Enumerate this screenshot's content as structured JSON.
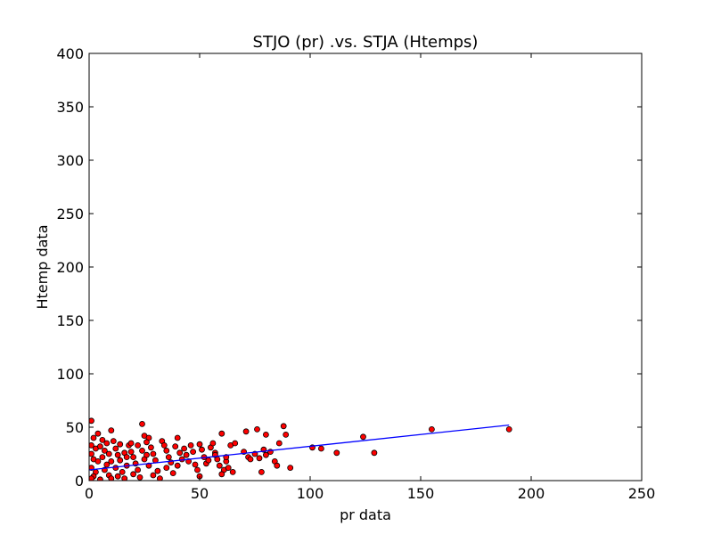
{
  "chart_data": {
    "type": "scatter",
    "title": "STJO (pr) .vs. STJA (Htemps)",
    "xlabel": "pr data",
    "ylabel": "Htemp data",
    "xlim": [
      0,
      250
    ],
    "ylim": [
      0,
      400
    ],
    "xticks": [
      "0",
      "50",
      "100",
      "150",
      "200",
      "250"
    ],
    "yticks": [
      "0",
      "50",
      "100",
      "150",
      "200",
      "250",
      "300",
      "350",
      "400"
    ],
    "grid": false,
    "legend": "none",
    "colors": {
      "points": "#ff0000",
      "point_edge": "#000000",
      "fit_line": "#0000ff",
      "axes": "#000000"
    },
    "fit_line": {
      "x": [
        0,
        190
      ],
      "y": [
        10,
        52
      ]
    },
    "points": [
      [
        1,
        56
      ],
      [
        2,
        40
      ],
      [
        1,
        33
      ],
      [
        3,
        30
      ],
      [
        1,
        25
      ],
      [
        2,
        20
      ],
      [
        4,
        18
      ],
      [
        1,
        12
      ],
      [
        3,
        8
      ],
      [
        2,
        4
      ],
      [
        1,
        2
      ],
      [
        5,
        1
      ],
      [
        4,
        44
      ],
      [
        6,
        38
      ],
      [
        5,
        32
      ],
      [
        7,
        28
      ],
      [
        6,
        22
      ],
      [
        8,
        15
      ],
      [
        7,
        10
      ],
      [
        9,
        5
      ],
      [
        10,
        2
      ],
      [
        8,
        35
      ],
      [
        9,
        25
      ],
      [
        10,
        18
      ],
      [
        10,
        47
      ],
      [
        11,
        37
      ],
      [
        12,
        30
      ],
      [
        13,
        24
      ],
      [
        14,
        19
      ],
      [
        12,
        12
      ],
      [
        15,
        8
      ],
      [
        13,
        4
      ],
      [
        16,
        2
      ],
      [
        14,
        34
      ],
      [
        16,
        26
      ],
      [
        17,
        14
      ],
      [
        18,
        33
      ],
      [
        19,
        27
      ],
      [
        20,
        22
      ],
      [
        21,
        16
      ],
      [
        22,
        10
      ],
      [
        20,
        6
      ],
      [
        23,
        3
      ],
      [
        24,
        28
      ],
      [
        25,
        20
      ],
      [
        19,
        35
      ],
      [
        22,
        33
      ],
      [
        17,
        22
      ],
      [
        24,
        53
      ],
      [
        25,
        42
      ],
      [
        27,
        40
      ],
      [
        26,
        36
      ],
      [
        28,
        31
      ],
      [
        29,
        25
      ],
      [
        30,
        19
      ],
      [
        27,
        14
      ],
      [
        31,
        9
      ],
      [
        29,
        5
      ],
      [
        32,
        2
      ],
      [
        26,
        24
      ],
      [
        33,
        37
      ],
      [
        34,
        33
      ],
      [
        35,
        28
      ],
      [
        36,
        22
      ],
      [
        37,
        17
      ],
      [
        35,
        12
      ],
      [
        38,
        7
      ],
      [
        40,
        40
      ],
      [
        39,
        32
      ],
      [
        41,
        26
      ],
      [
        42,
        20
      ],
      [
        40,
        14
      ],
      [
        43,
        30
      ],
      [
        44,
        24
      ],
      [
        45,
        18
      ],
      [
        46,
        33
      ],
      [
        47,
        27
      ],
      [
        48,
        15
      ],
      [
        49,
        10
      ],
      [
        50,
        34
      ],
      [
        51,
        29
      ],
      [
        52,
        22
      ],
      [
        53,
        16
      ],
      [
        50,
        4
      ],
      [
        55,
        31
      ],
      [
        56,
        35
      ],
      [
        57,
        26
      ],
      [
        58,
        20
      ],
      [
        59,
        14
      ],
      [
        60,
        44
      ],
      [
        61,
        10
      ],
      [
        62,
        18
      ],
      [
        63,
        12
      ],
      [
        64,
        33
      ],
      [
        65,
        8
      ],
      [
        66,
        35
      ],
      [
        60,
        6
      ],
      [
        62,
        22
      ],
      [
        57,
        24
      ],
      [
        54,
        19
      ],
      [
        70,
        27
      ],
      [
        71,
        46
      ],
      [
        72,
        22
      ],
      [
        73,
        20
      ],
      [
        75,
        25
      ],
      [
        76,
        48
      ],
      [
        77,
        21
      ],
      [
        78,
        8
      ],
      [
        79,
        29
      ],
      [
        80,
        43
      ],
      [
        80,
        24
      ],
      [
        82,
        27
      ],
      [
        84,
        18
      ],
      [
        85,
        14
      ],
      [
        86,
        35
      ],
      [
        88,
        51
      ],
      [
        89,
        43
      ],
      [
        91,
        12
      ],
      [
        101,
        31
      ],
      [
        105,
        30
      ],
      [
        112,
        26
      ],
      [
        124,
        41
      ],
      [
        129,
        26
      ],
      [
        155,
        48
      ],
      [
        190,
        48
      ]
    ]
  }
}
